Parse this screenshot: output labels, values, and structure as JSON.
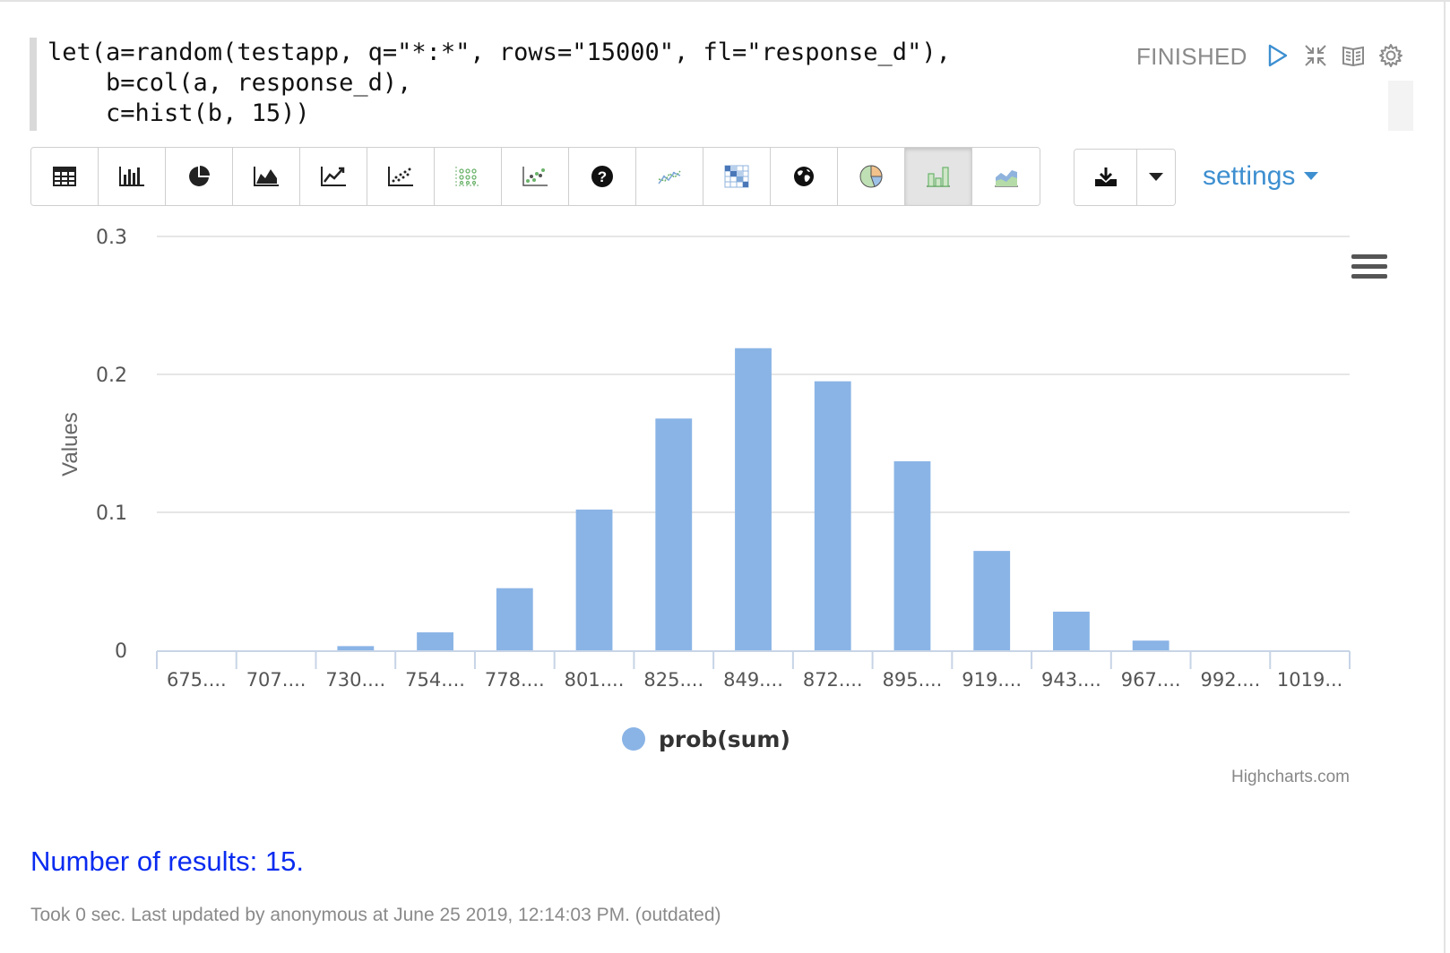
{
  "paragraph": {
    "code_lines": [
      "let(a=random(testapp, q=\"*:*\", rows=\"15000\", fl=\"response_d\"),",
      "    b=col(a, response_d),",
      "    c=hist(b, 15))"
    ],
    "status": "FINISHED",
    "icons": [
      "run-icon",
      "collapse-icon",
      "book-icon",
      "gear-icon"
    ]
  },
  "toolbar": {
    "buttons": [
      "table-icon",
      "bar-chart-icon",
      "pie-chart-icon",
      "area-chart-icon",
      "line-chart-icon",
      "scatter-chart-icon",
      "bubble-chart-icon",
      "scatter-color-icon",
      "help-icon",
      "network-icon",
      "heatmap-icon",
      "map-icon",
      "pie-color-icon",
      "histogram-icon",
      "area-color-icon"
    ],
    "active_index": 13,
    "download_icon": "download-icon",
    "settings_label": "settings"
  },
  "chart_data": {
    "type": "bar",
    "title": "",
    "xlabel": "",
    "ylabel": "Values",
    "categories": [
      "675....",
      "707....",
      "730....",
      "754....",
      "778....",
      "801....",
      "825....",
      "849....",
      "872....",
      "895....",
      "919....",
      "943....",
      "967....",
      "992....",
      "1019..."
    ],
    "series": [
      {
        "name": "prob(sum)",
        "values": [
          0.0,
          0.0,
          0.003,
          0.013,
          0.045,
          0.102,
          0.168,
          0.219,
          0.195,
          0.137,
          0.072,
          0.028,
          0.007,
          0.0,
          0.0
        ],
        "color": "#8ab4e6"
      }
    ],
    "ylim": [
      0,
      0.3
    ],
    "yticks": [
      "0",
      "0.1",
      "0.2",
      "0.3"
    ],
    "grid": true,
    "legend": "bottom-center",
    "credits": "Highcharts.com"
  },
  "results_text": "Number of results: 15.",
  "footer_text": "Took 0 sec. Last updated by anonymous at June 25 2019, 12:14:03 PM. (outdated)"
}
